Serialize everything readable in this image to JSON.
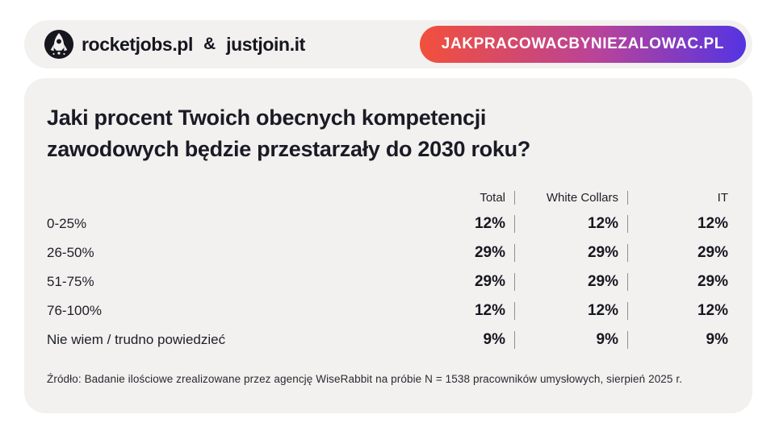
{
  "header": {
    "logo": {
      "brand1": "rocketjobs.pl",
      "separator": "&",
      "brand2": "justjoin.it"
    },
    "banner": {
      "label": "JAKPRACOWACBYNIEZALOWAC.PL",
      "gradient_start": "#f2503b",
      "gradient_mid": "#b8439a",
      "gradient_end": "#5434e2"
    }
  },
  "card": {
    "title_line1": "Jaki procent Twoich obecnych kompetencji",
    "title_line2": "zawodowych będzie przestarzały do 2030 roku?",
    "source": "Źródło: Badanie ilościowe zrealizowane przez agencję WiseRabbit na próbie N = 1538 pracowników umysłowych, sierpień 2025 r."
  },
  "chart_data": {
    "type": "table",
    "title": "Jaki procent Twoich obecnych kompetencji zawodowych będzie przestarzały do 2030 roku?",
    "columns": [
      "Total",
      "White Collars",
      "IT"
    ],
    "rows": [
      {
        "label": "0-25%",
        "values": [
          "12%",
          "12%",
          "12%"
        ]
      },
      {
        "label": "26-50%",
        "values": [
          "29%",
          "29%",
          "29%"
        ]
      },
      {
        "label": "51-75%",
        "values": [
          "29%",
          "29%",
          "29%"
        ]
      },
      {
        "label": "76-100%",
        "values": [
          "12%",
          "12%",
          "12%"
        ]
      },
      {
        "label": "Nie wiem / trudno powiedzieć",
        "values": [
          "9%",
          "9%",
          "9%"
        ]
      }
    ]
  },
  "colors": {
    "card_background": "#f2f1ef",
    "text_dark": "#1b1b26",
    "divider": "#8f8f8f"
  }
}
